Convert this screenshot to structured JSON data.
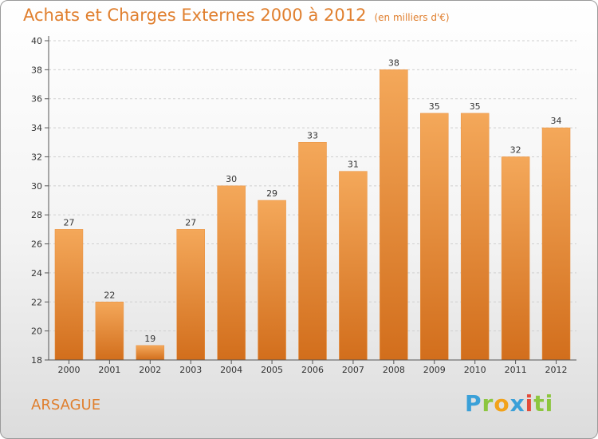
{
  "title": "Achats et Charges Externes 2000 à 2012",
  "unit": "(en milliers d'€)",
  "commune": "ARSAGUE",
  "logo": {
    "letters": [
      "P",
      "r",
      "o",
      "x",
      "i",
      "ti"
    ]
  },
  "colors": {
    "bar_top": "#f4a85a",
    "bar_bottom": "#d26e1c",
    "title": "#e07f2e"
  },
  "chart_data": {
    "type": "bar",
    "categories": [
      "2000",
      "2001",
      "2002",
      "2003",
      "2004",
      "2005",
      "2006",
      "2007",
      "2008",
      "2009",
      "2010",
      "2011",
      "2012"
    ],
    "values": [
      27,
      22,
      19,
      27,
      30,
      29,
      33,
      31,
      38,
      35,
      35,
      32,
      34
    ],
    "ylim": [
      18,
      40
    ],
    "yticks": [
      18,
      20,
      22,
      24,
      26,
      28,
      30,
      32,
      34,
      36,
      38,
      40
    ],
    "grid": true,
    "title": "Achats et Charges Externes 2000 à 2012",
    "xlabel": "",
    "ylabel": ""
  }
}
